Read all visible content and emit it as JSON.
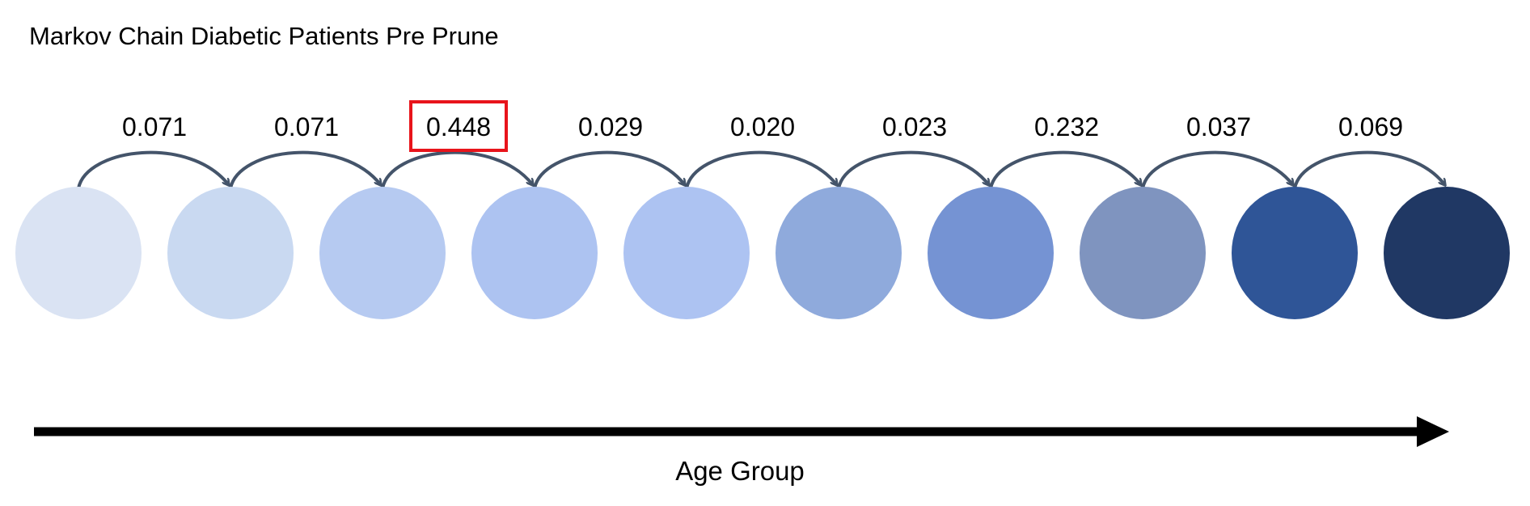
{
  "title": "Markov Chain Diabetic Patients Pre Prune",
  "axis_label": "Age Group",
  "colors": {
    "arc": "#44546a",
    "axis": "#000000",
    "highlight": "#e8141b"
  },
  "states": [
    {
      "color": "#dae3f3"
    },
    {
      "color": "#c9d9f1"
    },
    {
      "color": "#b6caf1"
    },
    {
      "color": "#adc3f1"
    },
    {
      "color": "#adc3f2"
    },
    {
      "color": "#8faadc"
    },
    {
      "color": "#7593d3"
    },
    {
      "color": "#7f94bf"
    },
    {
      "color": "#2f5597"
    },
    {
      "color": "#203864"
    }
  ],
  "transitions": [
    {
      "probability": "0.071",
      "highlighted": false
    },
    {
      "probability": "0.071",
      "highlighted": false
    },
    {
      "probability": "0.448",
      "highlighted": true
    },
    {
      "probability": "0.029",
      "highlighted": false
    },
    {
      "probability": "0.020",
      "highlighted": false
    },
    {
      "probability": "0.023",
      "highlighted": false
    },
    {
      "probability": "0.232",
      "highlighted": false
    },
    {
      "probability": "0.037",
      "highlighted": false
    },
    {
      "probability": "0.069",
      "highlighted": false
    }
  ]
}
